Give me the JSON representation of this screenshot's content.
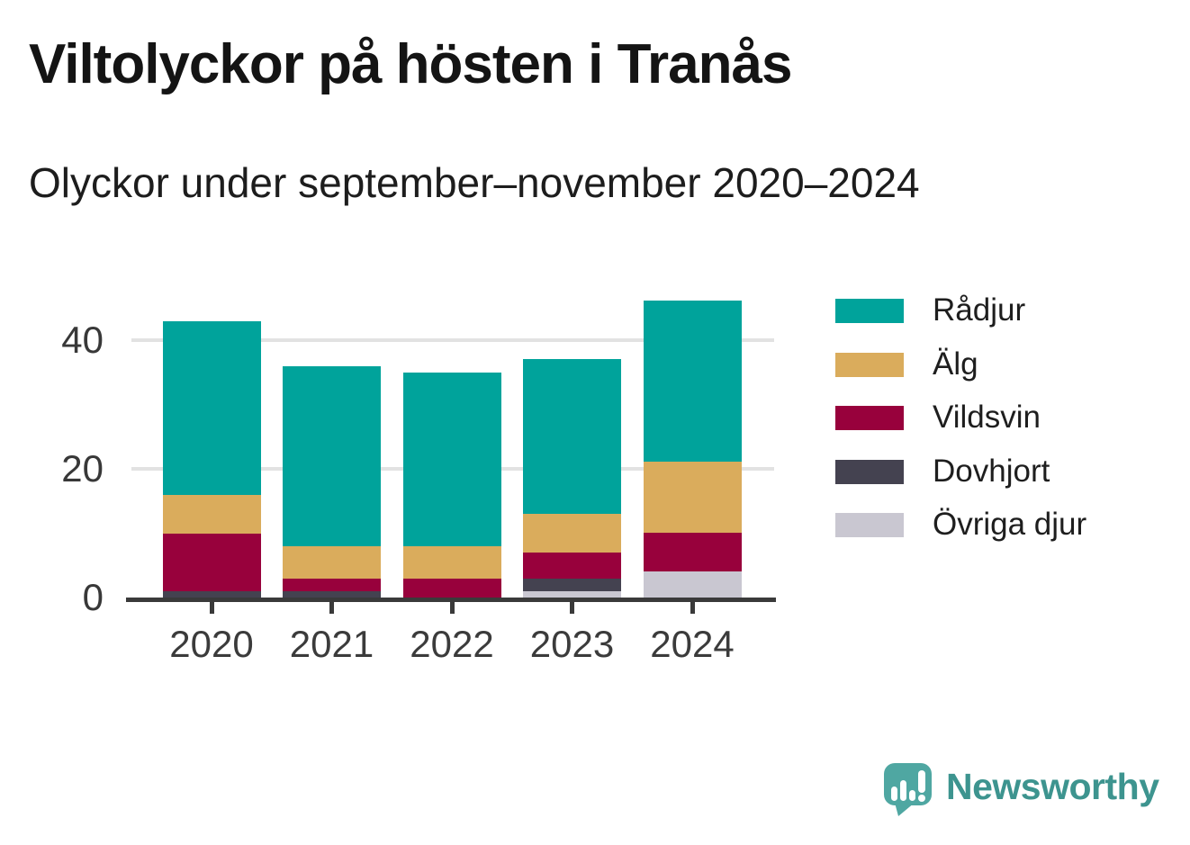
{
  "title": "Viltolyckor på hösten i Tranås",
  "subtitle": "Olyckor under september–november 2020–2024",
  "footer": {
    "brand": "Newsworthy",
    "logo_icon": "speech-bubble-bar-chart-icon"
  },
  "colors": {
    "background": "#ffffff",
    "axis": "#3a3a3a",
    "gridline": "#e2e2e2",
    "tick_label": "#3b3b3b",
    "title_text": "#141414",
    "brand_teal": "#3d948f",
    "logo_bubble": "#4fa7a2"
  },
  "chart_data": {
    "type": "bar",
    "stacked": true,
    "title": "Viltolyckor på hösten i Tranås",
    "subtitle": "Olyckor under september–november 2020–2024",
    "categories": [
      "2020",
      "2021",
      "2022",
      "2023",
      "2024"
    ],
    "series": [
      {
        "name": "Rådjur",
        "color": "#00a39b",
        "values": [
          27,
          28,
          27,
          24,
          25
        ]
      },
      {
        "name": "Älg",
        "color": "#daac5c",
        "values": [
          6,
          5,
          5,
          6,
          11
        ]
      },
      {
        "name": "Vildsvin",
        "color": "#98013c",
        "values": [
          9,
          2,
          3,
          4,
          6
        ]
      },
      {
        "name": "Dovhjort",
        "color": "#444250",
        "values": [
          1,
          1,
          0,
          2,
          0
        ]
      },
      {
        "name": "Övriga djur",
        "color": "#c9c7d1",
        "values": [
          0,
          0,
          0,
          1,
          4
        ]
      }
    ],
    "totals": [
      43,
      36,
      35,
      37,
      46
    ],
    "stack_order_bottom_to_top": [
      "Övriga djur",
      "Dovhjort",
      "Vildsvin",
      "Älg",
      "Rådjur"
    ],
    "xlabel": "",
    "ylabel": "",
    "yticks": [
      0,
      20,
      40
    ],
    "ylim": [
      0,
      47
    ],
    "grid": "horizontal",
    "legend_position": "right"
  }
}
